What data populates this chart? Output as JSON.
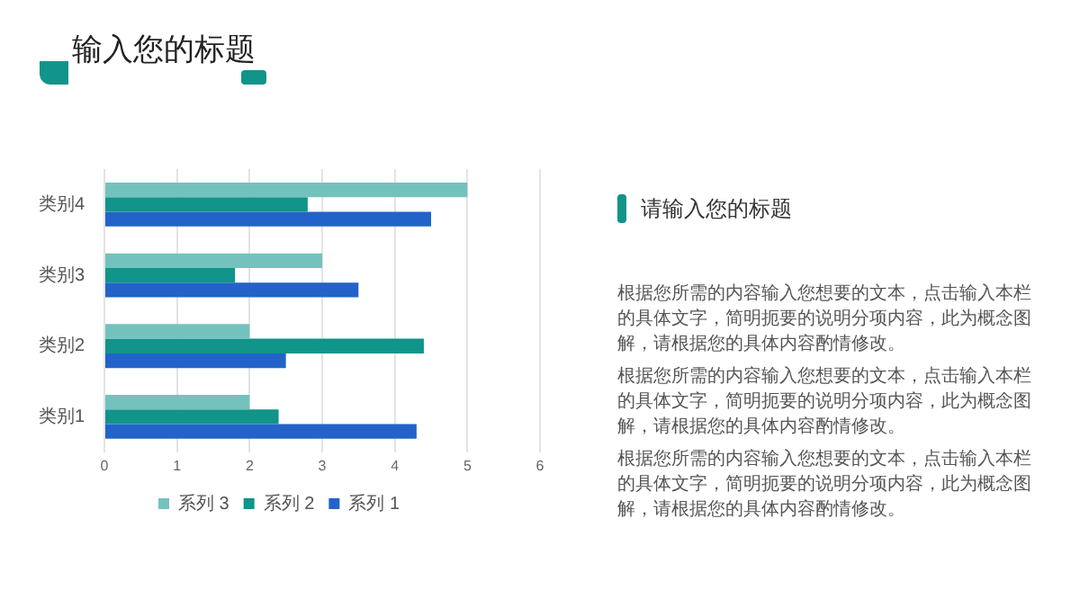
{
  "chart_data": [
    {
      "type": "bar",
      "orientation": "horizontal",
      "title": "输入您的标题",
      "categories": [
        "类别4",
        "类别3",
        "类别2",
        "类别1"
      ],
      "series": [
        {
          "name": "系列 3",
          "color": "#74c2bd",
          "values": [
            5,
            3,
            2,
            2
          ]
        },
        {
          "name": "系列 2",
          "color": "#11948a",
          "values": [
            2.8,
            1.8,
            4.4,
            2.4
          ]
        },
        {
          "name": "系列 1",
          "color": "#2363c9",
          "values": [
            4.5,
            3.5,
            2.5,
            4.3
          ]
        }
      ],
      "xlim": [
        0,
        6
      ],
      "xticks": [
        0,
        1,
        2,
        3,
        4,
        5,
        6
      ],
      "grid": "x",
      "legend": "bottom"
    },
    {
      "type": "other",
      "title": "请输入您的标题",
      "annotations": [
        "根据您所需的内容输入您想要的文本，点击输入本栏的具体文字，简明扼要的说明分项内容，此为概念图解，请根据您的具体内容酌情修改。",
        "根据您所需的内容输入您想要的文本，点击输入本栏的具体文字，简明扼要的说明分项内容，此为概念图解，请根据您的具体内容酌情修改。",
        "根据您所需的内容输入您想要的文本，点击输入本栏的具体文字，简明扼要的说明分项内容，此为概念图解，请根据您的具体内容酌情修改。"
      ]
    }
  ]
}
